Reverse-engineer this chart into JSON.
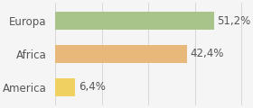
{
  "categories": [
    "America",
    "Africa",
    "Europa"
  ],
  "values": [
    6.4,
    42.4,
    51.2
  ],
  "labels": [
    "6,4%",
    "42,4%",
    "51,2%"
  ],
  "bar_colors": [
    "#f0d060",
    "#e8b87a",
    "#a8c48a"
  ],
  "background_color": "#f5f5f5",
  "xlim": [
    0,
    62
  ],
  "bar_height": 0.55,
  "label_fontsize": 8.5,
  "tick_fontsize": 8.5,
  "label_color": "#555555",
  "tick_color": "#555555",
  "grid_color": "#cccccc",
  "grid_positions": [
    0,
    15,
    30,
    45,
    60
  ]
}
